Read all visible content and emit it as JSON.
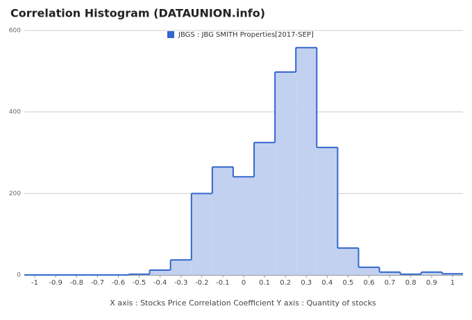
{
  "chart_data": {
    "type": "histogram",
    "title": "Correlation Histogram (DATAUNION.info)",
    "x_label": "X axis : Stocks Price Correlation Coefficient  Y axis : Quantity of stocks",
    "bins": [
      -1.05,
      -0.95,
      -0.85,
      -0.75,
      -0.65,
      -0.55,
      -0.45,
      -0.35,
      -0.25,
      -0.15,
      -0.05,
      0.05,
      0.15,
      0.25,
      0.35,
      0.45,
      0.55,
      0.65,
      0.75,
      0.85,
      0.95,
      1.05
    ],
    "series": [
      {
        "name": "JBGS : JBG SMITH Properties[2017-SEP]",
        "color": "#3366cc",
        "fill": "#c2d1f0",
        "values": [
          0,
          0,
          0,
          0,
          0,
          2,
          12,
          37,
          200,
          265,
          241,
          325,
          498,
          558,
          313,
          66,
          19,
          7,
          2,
          7,
          3
        ]
      }
    ],
    "xlim": [
      -1.05,
      1.05
    ],
    "xticks": [
      -1,
      -0.9,
      -0.8,
      -0.7,
      -0.6,
      -0.5,
      -0.4,
      -0.3,
      -0.2,
      -0.1,
      0,
      0.1,
      0.2,
      0.3,
      0.4,
      0.5,
      0.6,
      0.7,
      0.8,
      0.9,
      1
    ],
    "ylim": [
      0,
      600
    ],
    "yticks": [
      0,
      200,
      400,
      600
    ],
    "grid": true,
    "legend": "top"
  }
}
